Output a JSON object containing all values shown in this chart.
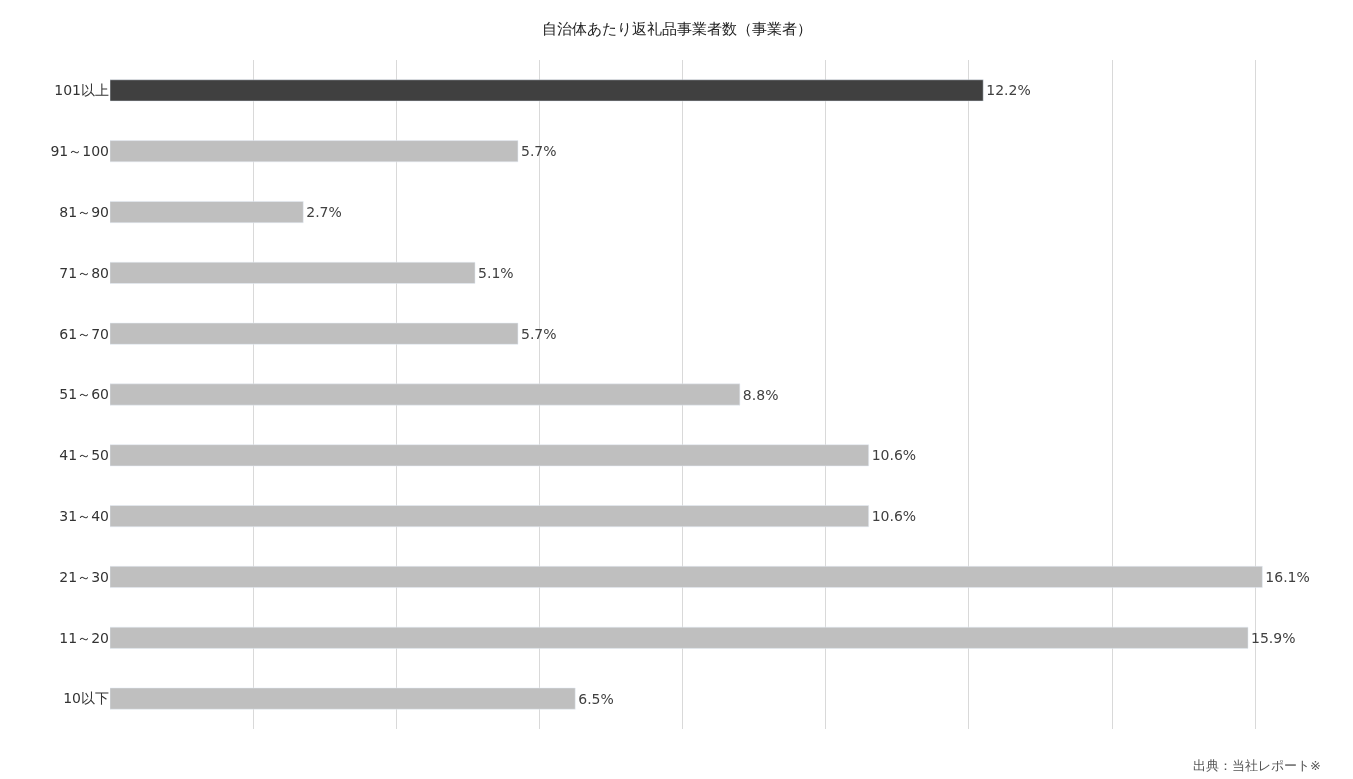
{
  "chart_data": {
    "type": "bar",
    "orientation": "horizontal",
    "title": "自治体あたり返礼品事業者数（事業者）",
    "categories": [
      "101以上",
      "91～100",
      "81～90",
      "71～80",
      "61～70",
      "51～60",
      "41～50",
      "31～40",
      "21～30",
      "11～20",
      "10以下"
    ],
    "values": [
      12.2,
      5.7,
      2.7,
      5.1,
      5.7,
      8.8,
      10.6,
      10.6,
      16.1,
      15.9,
      6.5
    ],
    "value_labels": [
      "12.2%",
      "5.7%",
      "2.7%",
      "5.1%",
      "5.7%",
      "8.8%",
      "10.6%",
      "10.6%",
      "16.1%",
      "15.9%",
      "6.5%"
    ],
    "colors": [
      "#404040",
      "#bfbfbf",
      "#bfbfbf",
      "#bfbfbf",
      "#bfbfbf",
      "#bfbfbf",
      "#bfbfbf",
      "#bfbfbf",
      "#bfbfbf",
      "#bfbfbf",
      "#bfbfbf"
    ],
    "tick_labels": "y",
    "grid": "x",
    "annotations": [
      "出典：当社レポート※"
    ]
  }
}
